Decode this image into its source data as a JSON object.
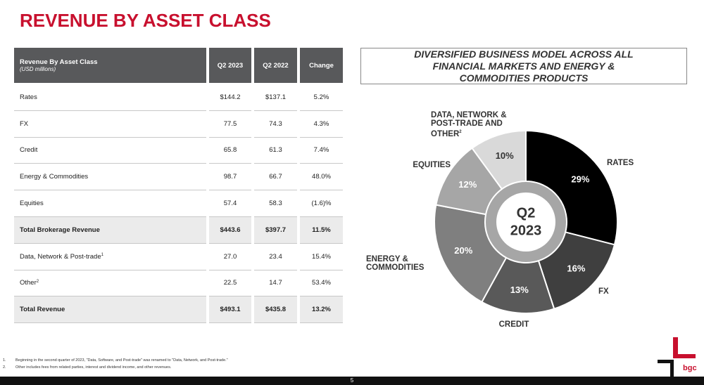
{
  "header": {
    "title": "REVENUE BY ASSET CLASS"
  },
  "table": {
    "header": {
      "label": "Revenue By Asset Class",
      "sublabel": "(USD millions)",
      "columns": [
        "Q2 2023",
        "Q2 2022",
        "Change"
      ]
    },
    "rows": [
      {
        "label": "Rates",
        "cells": [
          "$144.2",
          "$137.1",
          "5.2%"
        ],
        "bold": false
      },
      {
        "label": "FX",
        "cells": [
          "77.5",
          "74.3",
          "4.3%"
        ],
        "bold": false
      },
      {
        "label": "Credit",
        "cells": [
          "65.8",
          "61.3",
          "7.4%"
        ],
        "bold": false
      },
      {
        "label": "Energy & Commodities",
        "cells": [
          "98.7",
          "66.7",
          "48.0%"
        ],
        "bold": false
      },
      {
        "label": "Equities",
        "cells": [
          "57.4",
          "58.3",
          "(1.6)%"
        ],
        "bold": false
      },
      {
        "label": "Total Brokerage Revenue",
        "cells": [
          "$443.6",
          "$397.7",
          "11.5%"
        ],
        "bold": true
      },
      {
        "label": "Data, Network & Post-trade",
        "sup": "1",
        "cells": [
          "27.0",
          "23.4",
          "15.4%"
        ],
        "bold": false
      },
      {
        "label": "Other",
        "sup": "2",
        "cells": [
          "22.5",
          "14.7",
          "53.4%"
        ],
        "bold": false
      },
      {
        "label": "Total Revenue",
        "cells": [
          "$493.1",
          "$435.8",
          "13.2%"
        ],
        "bold": true
      }
    ]
  },
  "chart_data": {
    "type": "donut",
    "title": "DIVERSIFIED BUSINESS MODEL ACROSS ALL FINANCIAL MARKETS AND ENERGY & COMMODITIES PRODUCTS",
    "center_label": [
      "Q2",
      "2023"
    ],
    "categories": [
      "RATES",
      "FX",
      "CREDIT",
      "ENERGY & COMMODITIES",
      "EQUITIES",
      "DATA, NETWORK & POST-TRADE AND OTHER"
    ],
    "category_superscript": "2",
    "values": [
      29,
      16,
      13,
      20,
      12,
      10
    ],
    "value_labels": [
      "29%",
      "16%",
      "13%",
      "20%",
      "12%",
      "10%"
    ],
    "colors": [
      "#000000",
      "#3f3f3f",
      "#595959",
      "#7f7f7f",
      "#a6a6a6",
      "#d9d9d9"
    ]
  },
  "footnotes": [
    {
      "number": "1.",
      "text": "Beginning in the second quarter of 2023, \"Data, Software, and Post-trade\" was renamed to \"Data, Network, and Post-trade.\""
    },
    {
      "number": "2.",
      "text": "Other includes fees from related parties, interest and dividend income, and other revenues."
    }
  ],
  "page_number": "5",
  "logo": "bgc"
}
